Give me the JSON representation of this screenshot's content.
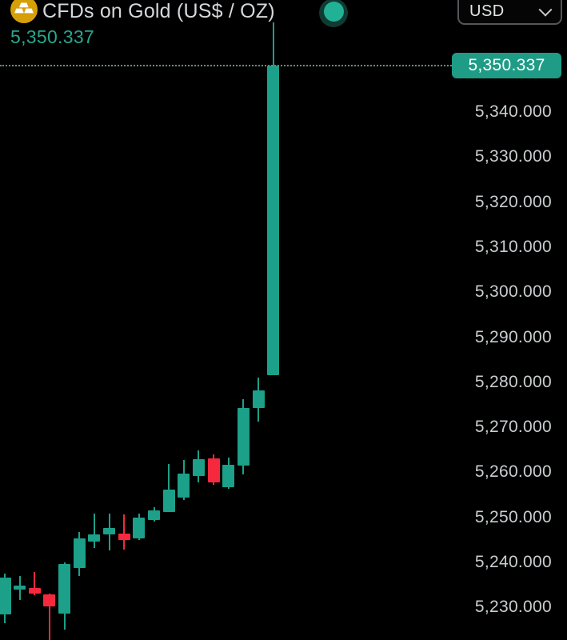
{
  "header": {
    "title": "CFDs on Gold (US$ / OZ)",
    "last_price": "5,350.337",
    "instrument_icon": "gold-bars-icon",
    "market_status_icon": "green-dot-market-open"
  },
  "currency_selector": {
    "value": "USD",
    "chevron_icon": "chevron-down-icon"
  },
  "price_scale": {
    "current_price_label": "5,350.337",
    "ticks": [
      {
        "label": "5,340.000",
        "value": 5340
      },
      {
        "label": "5,330.000",
        "value": 5330
      },
      {
        "label": "5,320.000",
        "value": 5320
      },
      {
        "label": "5,310.000",
        "value": 5310
      },
      {
        "label": "5,300.000",
        "value": 5300
      },
      {
        "label": "5,290.000",
        "value": 5290
      },
      {
        "label": "5,280.000",
        "value": 5280
      },
      {
        "label": "5,270.000",
        "value": 5270
      },
      {
        "label": "5,260.000",
        "value": 5260
      },
      {
        "label": "5,250.000",
        "value": 5250
      },
      {
        "label": "5,240.000",
        "value": 5240
      },
      {
        "label": "5,230.000",
        "value": 5230
      }
    ]
  },
  "colors": {
    "background": "#000000",
    "up_candle": "#1ca089",
    "down_candle": "#f5293d",
    "price_label_bg": "#1e9c86",
    "header_price_text": "#2aa78e",
    "title_text": "#d5d8db",
    "tick_text": "#c9cdcf",
    "gold_icon": "#d79f07",
    "status_dot": "#21b296",
    "dotted_line": "#6d8a82"
  },
  "chart_data": {
    "type": "candlestick",
    "title": "CFDs on Gold (US$ / OZ)",
    "quote_currency": "USD",
    "last_price": 5350.337,
    "grid": false,
    "y_axis": {
      "side": "right",
      "visible_range": [
        5222.0,
        5364.0
      ],
      "tick_step": 10,
      "ticks": [
        5340,
        5330,
        5320,
        5310,
        5300,
        5290,
        5280,
        5270,
        5260,
        5250,
        5240,
        5230
      ]
    },
    "price_line": {
      "value": 5350.337,
      "style": "dotted"
    },
    "candles": [
      {
        "o": 5228.5,
        "h": 5237.5,
        "l": 5226.5,
        "c": 5236.7,
        "dir": "up"
      },
      {
        "o": 5234.0,
        "h": 5237.0,
        "l": 5231.7,
        "c": 5234.9,
        "dir": "up"
      },
      {
        "o": 5234.3,
        "h": 5237.9,
        "l": 5232.7,
        "c": 5233.1,
        "dir": "down"
      },
      {
        "o": 5232.9,
        "h": 5233.0,
        "l": 5222.0,
        "c": 5230.2,
        "dir": "down"
      },
      {
        "o": 5228.6,
        "h": 5240.0,
        "l": 5225.0,
        "c": 5239.6,
        "dir": "up"
      },
      {
        "o": 5238.8,
        "h": 5246.7,
        "l": 5237.0,
        "c": 5245.3,
        "dir": "up"
      },
      {
        "o": 5244.6,
        "h": 5250.8,
        "l": 5243.2,
        "c": 5246.2,
        "dir": "up"
      },
      {
        "o": 5246.2,
        "h": 5250.8,
        "l": 5242.7,
        "c": 5247.6,
        "dir": "up"
      },
      {
        "o": 5246.4,
        "h": 5250.7,
        "l": 5242.9,
        "c": 5245.0,
        "dir": "down"
      },
      {
        "o": 5245.3,
        "h": 5250.8,
        "l": 5245.0,
        "c": 5249.9,
        "dir": "up"
      },
      {
        "o": 5249.4,
        "h": 5252.2,
        "l": 5249.1,
        "c": 5251.5,
        "dir": "up"
      },
      {
        "o": 5251.2,
        "h": 5261.9,
        "l": 5251.2,
        "c": 5256.2,
        "dir": "up"
      },
      {
        "o": 5254.4,
        "h": 5262.7,
        "l": 5253.9,
        "c": 5259.7,
        "dir": "up"
      },
      {
        "o": 5259.2,
        "h": 5264.9,
        "l": 5257.8,
        "c": 5262.9,
        "dir": "up"
      },
      {
        "o": 5263.1,
        "h": 5264.0,
        "l": 5257.2,
        "c": 5257.8,
        "dir": "down"
      },
      {
        "o": 5256.7,
        "h": 5263.3,
        "l": 5256.3,
        "c": 5261.7,
        "dir": "up"
      },
      {
        "o": 5261.5,
        "h": 5276.2,
        "l": 5259.5,
        "c": 5274.3,
        "dir": "up"
      },
      {
        "o": 5274.3,
        "h": 5281.0,
        "l": 5271.3,
        "c": 5278.2,
        "dir": "up"
      },
      {
        "o": 5281.6,
        "h": 5359.9,
        "l": 5281.6,
        "c": 5350.337,
        "dir": "up"
      }
    ]
  }
}
